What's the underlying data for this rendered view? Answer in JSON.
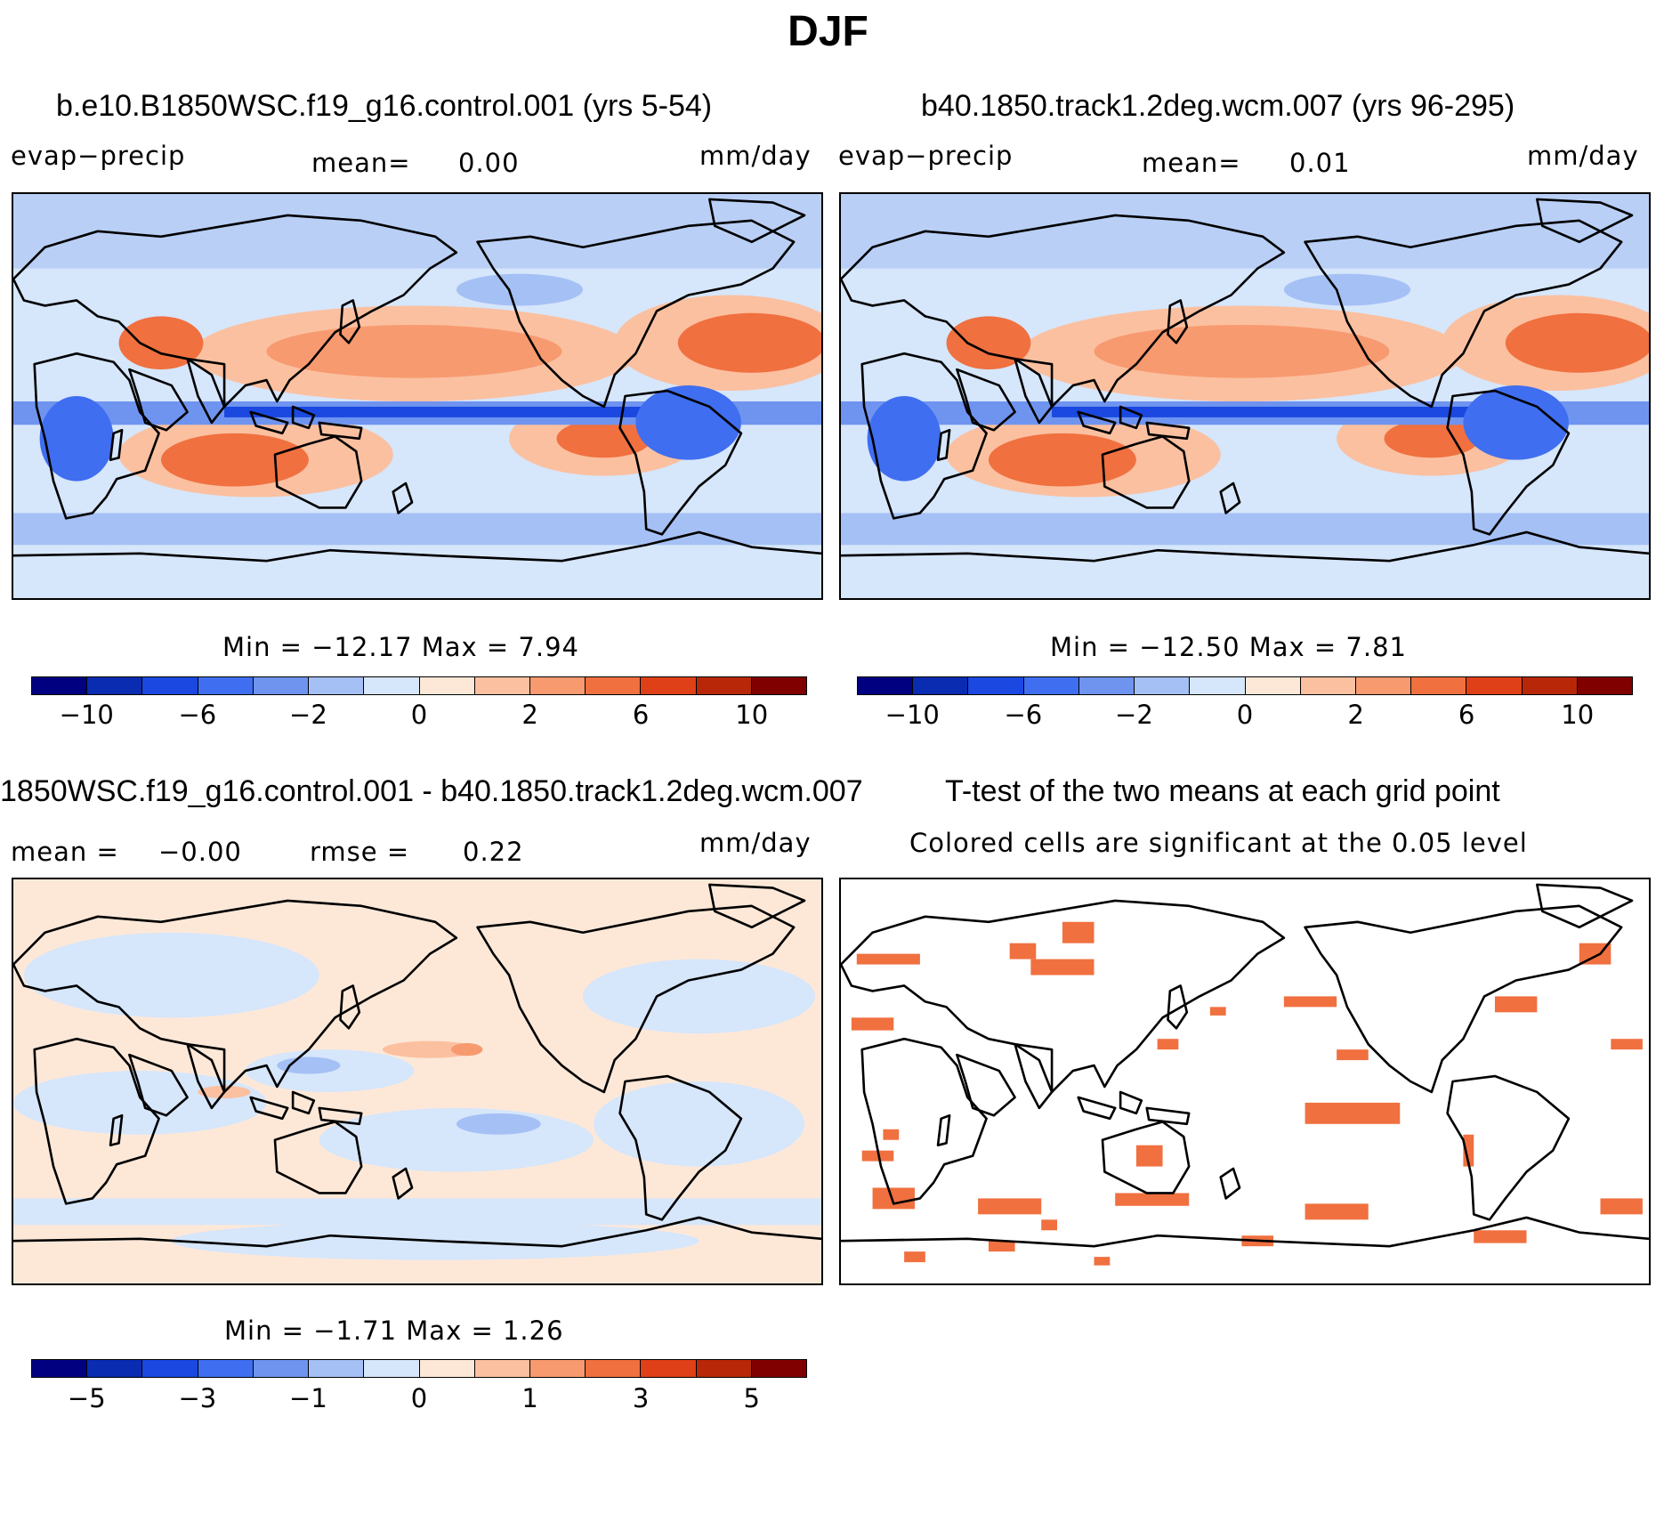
{
  "suptitle": "DJF",
  "panels": {
    "p1": {
      "title": "b.e10.B1850WSC.f19_g16.control.001 (yrs 5-54)",
      "var": "evap−precip",
      "mean_label": "mean=",
      "mean_value": "0.00",
      "units": "mm/day",
      "minmax": "Min = −12.17 Max =     7.94"
    },
    "p2": {
      "title": "b40.1850.track1.2deg.wcm.007 (yrs 96-295)",
      "var": "evap−precip",
      "mean_label": "mean=",
      "mean_value": "0.01",
      "units": "mm/day",
      "minmax": "Min = −12.50 Max =     7.81"
    },
    "p3": {
      "title": "1850WSC.f19_g16.control.001 - b40.1850.track1.2deg.wcm.007",
      "mean_label": "mean =",
      "mean_value": "−0.00",
      "rmse_label": "rmse =",
      "rmse_value": "0.22",
      "units": "mm/day",
      "minmax": "Min =   −1.71 Max =     1.26"
    },
    "p4": {
      "title": "T-test of the two means at each grid point",
      "subtitle": "Colored cells are significant at the 0.05 level"
    }
  },
  "colorbar_main": {
    "colors": [
      "#000080",
      "#0a2cb0",
      "#1a48e0",
      "#3f6ef0",
      "#6f94f0",
      "#a5c0f4",
      "#d6e6fb",
      "#fde8d8",
      "#fbc0a0",
      "#f79a70",
      "#f07040",
      "#e04018",
      "#b82808",
      "#800000"
    ],
    "ticks": [
      "−10",
      "−6",
      "−2",
      "0",
      "2",
      "6",
      "10"
    ]
  },
  "colorbar_diff": {
    "colors": [
      "#000080",
      "#0a2cb0",
      "#1a48e0",
      "#3f6ef0",
      "#6f94f0",
      "#a5c0f4",
      "#d6e6fb",
      "#fde8d8",
      "#fbc0a0",
      "#f79a70",
      "#f07040",
      "#e04018",
      "#b82808",
      "#800000"
    ],
    "ticks": [
      "−5",
      "−3",
      "−1",
      "0",
      "1",
      "3",
      "5"
    ]
  },
  "chart_data": [
    {
      "type": "heatmap",
      "title": "b.e10.B1850WSC.f19_g16.control.001 (yrs 5-54)",
      "variable": "evap−precip",
      "units": "mm/day",
      "mean": 0.0,
      "min": -12.17,
      "max": 7.94,
      "colorbar_levels": [
        -12,
        -10,
        -8,
        -6,
        -4,
        -2,
        0,
        2,
        4,
        6,
        8,
        10,
        12
      ]
    },
    {
      "type": "heatmap",
      "title": "b40.1850.track1.2deg.wcm.007 (yrs 96-295)",
      "variable": "evap−precip",
      "units": "mm/day",
      "mean": 0.01,
      "min": -12.5,
      "max": 7.81,
      "colorbar_levels": [
        -12,
        -10,
        -8,
        -6,
        -4,
        -2,
        0,
        2,
        4,
        6,
        8,
        10,
        12
      ]
    },
    {
      "type": "heatmap",
      "title": "1850WSC.f19_g16.control.001 - b40.1850.track1.2deg.wcm.007",
      "units": "mm/day",
      "mean": -0.0,
      "rmse": 0.22,
      "min": -1.71,
      "max": 1.26,
      "colorbar_levels": [
        -6,
        -5,
        -4,
        -3,
        -2,
        -1,
        0,
        1,
        2,
        3,
        4,
        5,
        6
      ]
    },
    {
      "type": "heatmap",
      "title": "T-test of the two means at each grid point",
      "note": "Colored cells are significant at the 0.05 level",
      "significance_level": 0.05
    }
  ]
}
